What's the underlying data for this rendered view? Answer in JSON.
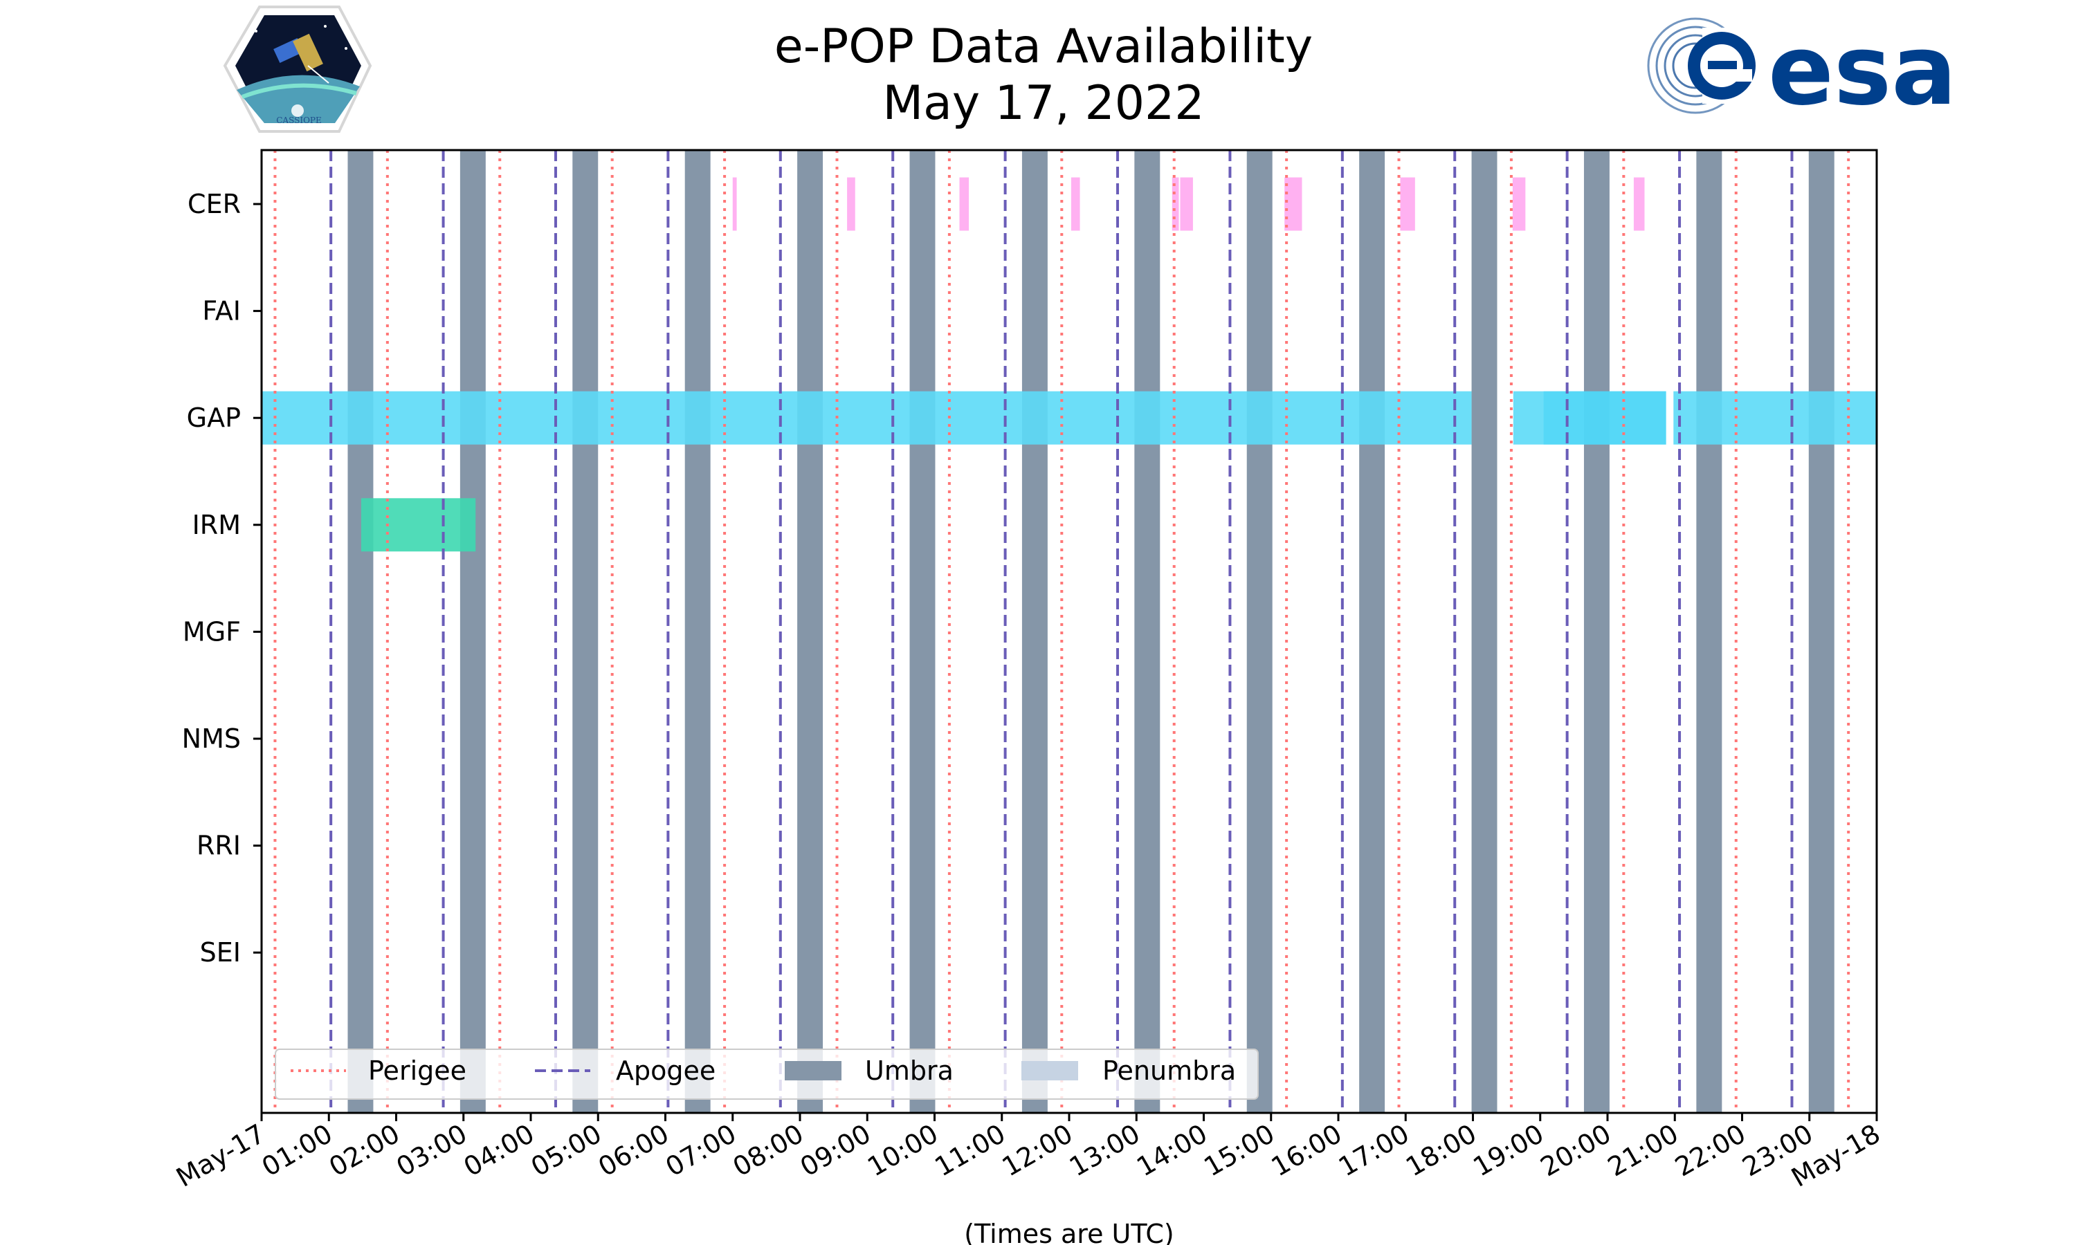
{
  "chart_data": {
    "type": "timeline",
    "title": [
      "e-POP Data Availability",
      "May 17, 2022"
    ],
    "xlabel": "(Times are UTC)",
    "x_unit": "hours UTC",
    "xlim": [
      0,
      24
    ],
    "x_tick_labels": [
      "May-17",
      "01:00",
      "02:00",
      "03:00",
      "04:00",
      "05:00",
      "06:00",
      "07:00",
      "08:00",
      "09:00",
      "10:00",
      "11:00",
      "12:00",
      "13:00",
      "14:00",
      "15:00",
      "16:00",
      "17:00",
      "18:00",
      "19:00",
      "20:00",
      "21:00",
      "22:00",
      "23:00",
      "May-18"
    ],
    "instruments": [
      "CER",
      "FAI",
      "GAP",
      "IRM",
      "MGF",
      "NMS",
      "RRI",
      "SEI"
    ],
    "perigee_hours": [
      0.2,
      1.87,
      3.54,
      5.21,
      6.88,
      8.55,
      10.22,
      11.89,
      13.56,
      15.23,
      16.9,
      18.57,
      20.24,
      21.91,
      23.58
    ],
    "apogee_hours": [
      1.03,
      2.7,
      4.37,
      6.04,
      7.71,
      9.38,
      11.05,
      12.72,
      14.39,
      16.06,
      17.73,
      19.4,
      21.07,
      22.74
    ],
    "umbra_intervals": [
      [
        1.28,
        1.66
      ],
      [
        2.95,
        3.33
      ],
      [
        4.62,
        5.0
      ],
      [
        6.29,
        6.67
      ],
      [
        7.96,
        8.34
      ],
      [
        9.63,
        10.01
      ],
      [
        11.3,
        11.68
      ],
      [
        12.97,
        13.35
      ],
      [
        14.64,
        15.02
      ],
      [
        16.31,
        16.69
      ],
      [
        17.98,
        18.36
      ],
      [
        19.65,
        20.03
      ],
      [
        21.32,
        21.7
      ],
      [
        22.99,
        23.37
      ]
    ],
    "penumbra_intervals": [],
    "availability": {
      "CER": [
        [
          7.0,
          7.06
        ],
        [
          8.7,
          8.82
        ],
        [
          10.37,
          10.51
        ],
        [
          12.03,
          12.16
        ],
        [
          13.53,
          13.63
        ],
        [
          13.65,
          13.84
        ],
        [
          15.2,
          15.46
        ],
        [
          16.92,
          17.14
        ],
        [
          18.59,
          18.78
        ],
        [
          20.39,
          20.55
        ]
      ],
      "FAI": [],
      "GAP": [
        [
          0.0,
          17.98
        ],
        [
          18.6,
          20.87
        ],
        [
          20.98,
          24.0
        ]
      ],
      "IRM": [
        [
          1.48,
          3.18
        ]
      ],
      "MGF": [],
      "NMS": [],
      "RRI": [],
      "SEI": []
    },
    "colors": {
      "perigee": "#ff7777",
      "apogee": "#6a5db8",
      "umbra": "#8596a8",
      "penumbra": "#c6d3e3",
      "CER": "#ffa8f0",
      "GAP": "#5cdaf7",
      "GAP_overlap": "#48d4f7",
      "IRM": "#3dd8b0"
    },
    "legend": {
      "placement": "lower-left",
      "entries": [
        "Perigee",
        "Apogee",
        "Umbra",
        "Penumbra"
      ]
    }
  },
  "logos": {
    "left": {
      "name": "cassiope-mission-logo",
      "text": "CASSIOPE"
    },
    "right": {
      "name": "esa-logo",
      "text": "esa"
    }
  }
}
